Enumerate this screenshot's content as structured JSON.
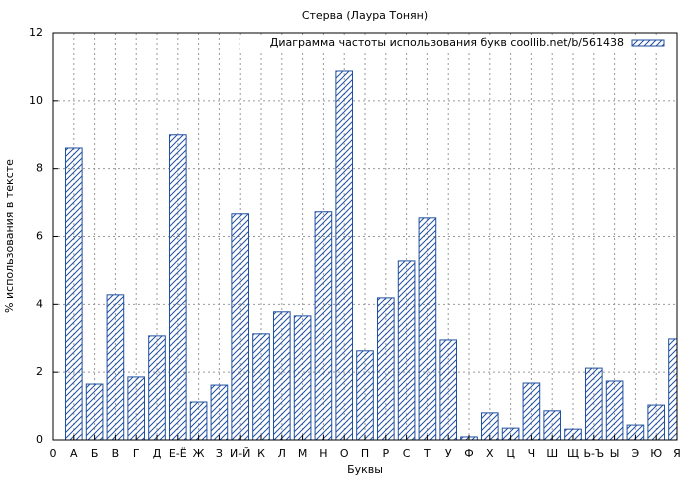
{
  "chart_data": {
    "type": "bar",
    "title": "Стерва (Лаура Тонян)",
    "xlabel": "Буквы",
    "ylabel": "% использования в тексте",
    "x": [
      1,
      2,
      3,
      4,
      5,
      6,
      7,
      8,
      9,
      10,
      11,
      12,
      13,
      14,
      15,
      16,
      17,
      18,
      19,
      20,
      21,
      22,
      23,
      24,
      25,
      26,
      27,
      28,
      29,
      30
    ],
    "series": [
      {
        "name": "Диаграмма частоты использования букв coollib.net/b/561438",
        "color": "#1f4fa0",
        "values": [
          8.61,
          1.65,
          4.28,
          1.86,
          3.07,
          9.0,
          1.12,
          1.62,
          6.67,
          3.13,
          3.78,
          3.66,
          6.73,
          10.88,
          2.63,
          4.19,
          5.28,
          6.55,
          2.95,
          0.09,
          0.8,
          0.35,
          1.68,
          0.86,
          0.32,
          2.12,
          1.74,
          0.44,
          1.03,
          2.98
        ]
      }
    ],
    "xlim": [
      0,
      30
    ],
    "xticks": [
      0,
      {
        "value": 1,
        "label": "А"
      },
      {
        "value": 2,
        "label": "Б"
      },
      {
        "value": 3,
        "label": "В"
      },
      {
        "value": 4,
        "label": "Г"
      },
      {
        "value": 5,
        "label": "Д"
      },
      {
        "value": 6,
        "label": "Е-Ё"
      },
      {
        "value": 7,
        "label": "Ж"
      },
      {
        "value": 8,
        "label": "З"
      },
      {
        "value": 9,
        "label": "И-Й"
      },
      {
        "value": 10,
        "label": "К"
      },
      {
        "value": 11,
        "label": "Л"
      },
      {
        "value": 12,
        "label": "М"
      },
      {
        "value": 13,
        "label": "Н"
      },
      {
        "value": 14,
        "label": "О"
      },
      {
        "value": 15,
        "label": "П"
      },
      {
        "value": 16,
        "label": "Р"
      },
      {
        "value": 17,
        "label": "С"
      },
      {
        "value": 18,
        "label": "Т"
      },
      {
        "value": 19,
        "label": "У"
      },
      {
        "value": 20,
        "label": "Ф"
      },
      {
        "value": 21,
        "label": "Х"
      },
      {
        "value": 22,
        "label": "Ц"
      },
      {
        "value": 23,
        "label": "Ч"
      },
      {
        "value": 24,
        "label": "Ш"
      },
      {
        "value": 25,
        "label": "Щ"
      },
      {
        "value": 26,
        "label": "Ь-Ъ"
      },
      {
        "value": 27,
        "label": "Ы"
      },
      {
        "value": 28,
        "label": "Э"
      },
      {
        "value": 29,
        "label": "Ю"
      },
      {
        "value": 30,
        "label": "Я"
      }
    ],
    "ylim": [
      0,
      12
    ],
    "yticks": [
      0,
      2,
      4,
      6,
      8,
      10,
      12
    ],
    "grid": true,
    "legend": "top-right"
  }
}
